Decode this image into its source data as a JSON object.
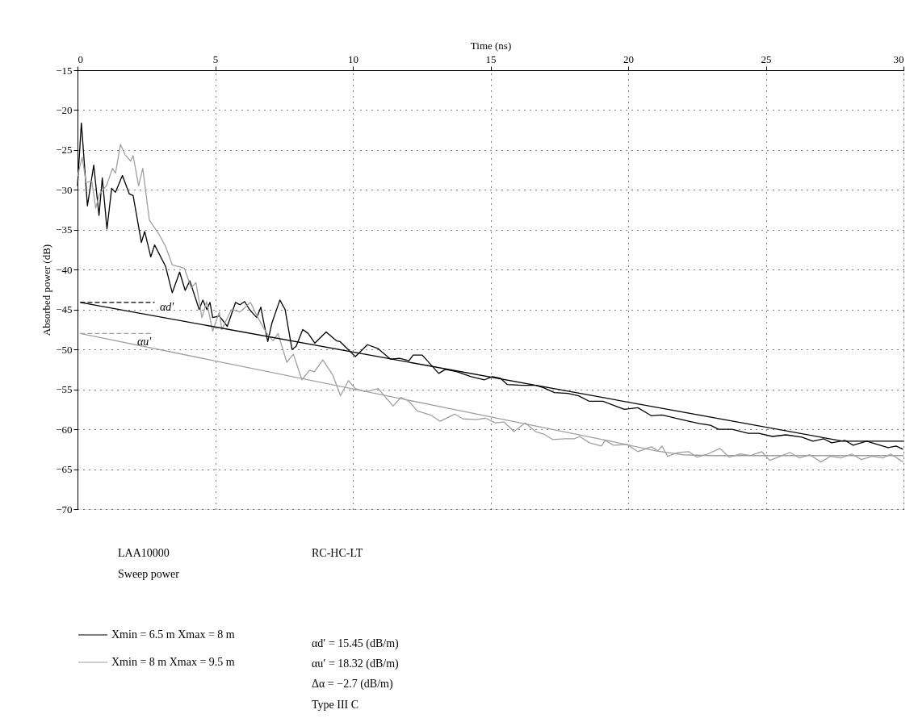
{
  "chart_data": {
    "type": "line",
    "xlabel": "Time (ns)",
    "ylabel": "Absorbed power (dB)",
    "xlim": [
      0,
      30
    ],
    "xticks": [
      0,
      5,
      10,
      15,
      20,
      25,
      30
    ],
    "ylim": [
      -70,
      -15
    ],
    "yticks": [
      {
        "value": -15,
        "label": "−15"
      },
      {
        "value": -20,
        "label": "−20"
      },
      {
        "value": -25,
        "label": "−25"
      },
      {
        "value": -30,
        "label": "−30"
      },
      {
        "value": -35,
        "label": "−35"
      },
      {
        "value": -40,
        "label": "−40"
      },
      {
        "value": -45,
        "label": "−45"
      },
      {
        "value": -50,
        "label": "−50"
      },
      {
        "value": -55,
        "label": "−55"
      },
      {
        "value": -60,
        "label": "−60"
      },
      {
        "value": -65,
        "label": "−65"
      },
      {
        "value": -70,
        "label": "−70"
      }
    ],
    "grid": true,
    "legend": "bottom left",
    "line_style": "solid",
    "marker": "none",
    "series": [
      {
        "name": "Xmin = 6.5 m Xmax = 8 m",
        "color": "#000000",
        "x": [
          0,
          0.14,
          0.36,
          0.59,
          0.78,
          0.9,
          1.07,
          1.24,
          1.38,
          1.63,
          1.88,
          2.02,
          2.32,
          2.44,
          2.66,
          2.8,
          3.2,
          3.44,
          3.71,
          3.91,
          4.08,
          4.42,
          4.55,
          4.7,
          4.81,
          4.91,
          5.15,
          5.44,
          5.74,
          5.9,
          6.07,
          6.25,
          6.51,
          6.66,
          6.77,
          6.91,
          7.06,
          7.35,
          7.54,
          7.79,
          7.94,
          8.18,
          8.38,
          8.62,
          9.03,
          9.4,
          9.53,
          10.09,
          10.53,
          10.92,
          11.36,
          11.7,
          12.04,
          12.19,
          12.52,
          13.12,
          13.36,
          13.79,
          14.29,
          14.78,
          15.07,
          15.36,
          15.61,
          16.15,
          16.64,
          16.93,
          17.32,
          17.81,
          18.2,
          18.59,
          19.08,
          19.47,
          19.86,
          20.35,
          20.84,
          21.23,
          21.82,
          22.2,
          22.6,
          22.99,
          23.28,
          23.77,
          24.36,
          24.75,
          25.24,
          25.73,
          26.31,
          26.71,
          27.1,
          27.39,
          27.88,
          28.17,
          28.66,
          29.05,
          29.44,
          29.73,
          29.98
        ],
        "values": [
          -29.5,
          -21.6,
          -32.0,
          -26.9,
          -33.2,
          -28.5,
          -34.9,
          -29.8,
          -30.3,
          -28.2,
          -30.5,
          -30.7,
          -36.6,
          -35.2,
          -38.4,
          -36.9,
          -39.6,
          -42.9,
          -40.3,
          -42.6,
          -41.4,
          -45.0,
          -43.8,
          -45.0,
          -44.1,
          -46.0,
          -45.8,
          -47.1,
          -44.1,
          -44.4,
          -44.0,
          -45.0,
          -46.0,
          -44.7,
          -46.7,
          -49.0,
          -46.7,
          -43.8,
          -45.0,
          -50.0,
          -49.6,
          -47.5,
          -48.0,
          -49.2,
          -47.8,
          -48.9,
          -49.0,
          -50.9,
          -49.4,
          -49.9,
          -51.2,
          -51.1,
          -51.4,
          -50.7,
          -50.7,
          -53.0,
          -52.5,
          -52.8,
          -53.4,
          -53.8,
          -53.4,
          -53.6,
          -54.4,
          -54.5,
          -54.5,
          -54.8,
          -55.4,
          -55.5,
          -55.8,
          -56.5,
          -56.5,
          -57.0,
          -57.5,
          -57.3,
          -58.3,
          -58.2,
          -58.7,
          -59.0,
          -59.3,
          -59.5,
          -60.0,
          -60.0,
          -60.5,
          -60.5,
          -60.9,
          -60.7,
          -61.0,
          -61.5,
          -61.2,
          -61.7,
          -61.4,
          -62.0,
          -61.5,
          -61.9,
          -62.3,
          -62.1,
          -62.5
        ]
      },
      {
        "name": "Xmin = 8 m Xmax = 9.5 m",
        "color": "#a0a0a0",
        "x": [
          0,
          0.17,
          0.31,
          0.52,
          0.66,
          0.8,
          1.05,
          1.27,
          1.38,
          1.56,
          1.73,
          1.93,
          2.02,
          2.22,
          2.37,
          2.61,
          2.95,
          3.2,
          3.44,
          3.88,
          4.13,
          4.3,
          4.52,
          4.69,
          4.91,
          5.15,
          5.24,
          5.59,
          5.9,
          6.28,
          6.55,
          6.86,
          7.1,
          7.28,
          7.6,
          7.84,
          8.15,
          8.43,
          8.6,
          8.91,
          9.27,
          9.55,
          9.84,
          10.09,
          10.48,
          10.92,
          11.46,
          11.75,
          12.04,
          12.34,
          12.82,
          13.17,
          13.7,
          14.0,
          14.49,
          14.82,
          15.17,
          15.5,
          15.85,
          16.26,
          16.64,
          16.93,
          17.27,
          17.7,
          18.05,
          18.24,
          18.59,
          19.03,
          19.16,
          19.47,
          19.96,
          20.35,
          20.84,
          21.08,
          21.23,
          21.43,
          21.82,
          22.2,
          22.5,
          22.89,
          23.33,
          23.67,
          24.06,
          24.45,
          24.85,
          25.14,
          25.53,
          25.87,
          26.22,
          26.6,
          27.0,
          27.34,
          27.73,
          28.12,
          28.47,
          28.86,
          29.25,
          29.54,
          29.98
        ],
        "values": [
          -28.3,
          -25.9,
          -29.1,
          -28.9,
          -32.3,
          -30.5,
          -29.5,
          -27.3,
          -27.9,
          -24.3,
          -25.6,
          -26.4,
          -25.7,
          -29.5,
          -27.3,
          -33.8,
          -35.5,
          -37.1,
          -39.4,
          -39.8,
          -42.3,
          -41.6,
          -46.0,
          -44.0,
          -47.7,
          -45.3,
          -47.5,
          -45.0,
          -45.3,
          -44.1,
          -46.0,
          -47.9,
          -48.9,
          -48.0,
          -51.6,
          -50.6,
          -53.8,
          -52.6,
          -52.8,
          -51.3,
          -53.2,
          -55.8,
          -53.9,
          -54.9,
          -55.3,
          -54.9,
          -57.1,
          -56.0,
          -56.5,
          -57.7,
          -58.2,
          -59.0,
          -58.1,
          -58.7,
          -58.8,
          -58.6,
          -59.2,
          -59.1,
          -60.3,
          -59.2,
          -60.3,
          -60.6,
          -61.3,
          -61.2,
          -61.2,
          -60.9,
          -61.7,
          -62.1,
          -61.4,
          -62.0,
          -61.9,
          -62.8,
          -62.2,
          -62.7,
          -62.1,
          -63.4,
          -62.9,
          -62.8,
          -63.5,
          -63.1,
          -62.4,
          -63.5,
          -63.1,
          -63.3,
          -62.8,
          -63.9,
          -63.4,
          -62.9,
          -63.6,
          -63.2,
          -64.1,
          -63.4,
          -63.6,
          -63.1,
          -63.8,
          -63.4,
          -63.6,
          -63.1,
          -64.1
        ]
      },
      {
        "color": "#000000",
        "x": [
          0.1,
          27.8,
          30
        ],
        "values": [
          -44.1,
          -61.5,
          -61.5
        ]
      },
      {
        "color": "#a0a0a0",
        "x": [
          0.1,
          19.5,
          21,
          22,
          23,
          30
        ],
        "values": [
          -48.0,
          -61.6,
          -62.7,
          -63.2,
          -63.3,
          -63.3
        ]
      },
      {
        "color": "#000000",
        "line_style": "dashed",
        "x": [
          0.1,
          2.8
        ],
        "values": [
          -44.1,
          -44.1
        ]
      },
      {
        "color": "#a0a0a0",
        "line_style": "dashed",
        "x": [
          0.1,
          2.7
        ],
        "values": [
          -48.0,
          -48.0
        ]
      }
    ],
    "annotations": [
      "αd′",
      "αu′",
      "LAA10000",
      "Sweep power",
      "RC-HC-LT",
      "αd′ = 15.45 (dB/m)",
      "αu′ = 18.32 (dB/m)",
      "Δα = −2.7 (dB/m)",
      "Type III C"
    ]
  }
}
